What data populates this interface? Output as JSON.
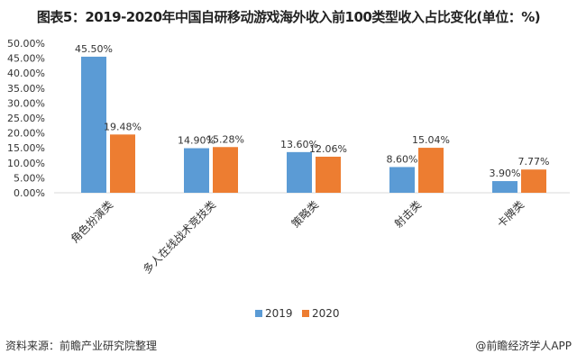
{
  "title": "图表5：2019-2020年中国自研移动游戏海外收入前100类型收入占比变化(单位：%)",
  "source": "资料来源：前瞻产业研究院整理",
  "credit": "@前瞻经济学人APP",
  "chart_data": {
    "type": "bar",
    "title": "图表5：2019-2020年中国自研移动游戏海外收入前100类型收入占比变化(单位：%)",
    "categories": [
      "角色扮演类",
      "多人在线战术竞技类",
      "策略类",
      "射击类",
      "卡牌类"
    ],
    "series": [
      {
        "name": "2019",
        "values": [
          45.5,
          14.9,
          13.6,
          8.6,
          3.9
        ],
        "color": "#5b9bd5"
      },
      {
        "name": "2020",
        "values": [
          19.48,
          15.28,
          12.06,
          15.04,
          7.77
        ],
        "color": "#ed7d31"
      }
    ],
    "ylim": [
      0,
      50
    ],
    "yticks": [
      "0.00%",
      "5.00%",
      "10.00%",
      "15.00%",
      "20.00%",
      "25.00%",
      "30.00%",
      "35.00%",
      "40.00%",
      "45.00%",
      "50.00%"
    ],
    "grid": false,
    "legend": "bottom"
  }
}
